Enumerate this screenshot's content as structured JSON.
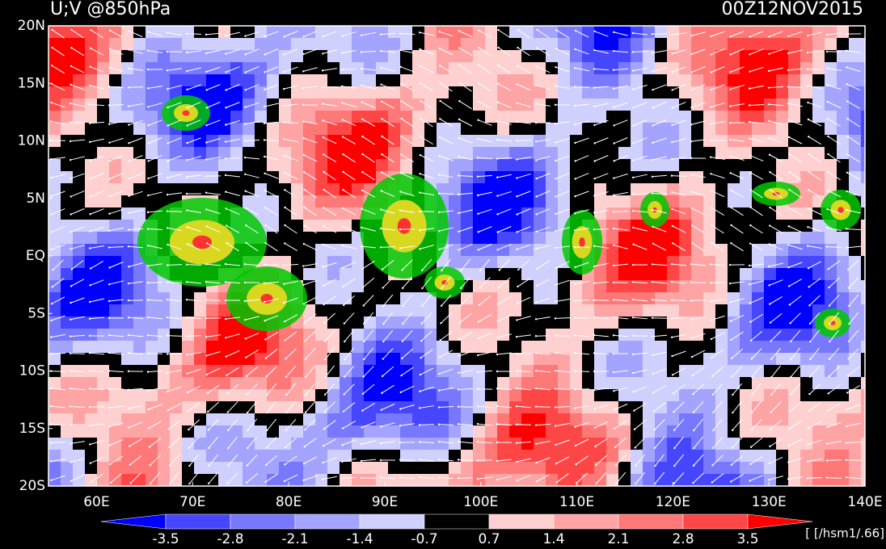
{
  "header": {
    "title": "U;V @850hPa",
    "time": "00Z12NOV2015"
  },
  "map": {
    "lat_labels": [
      "20N",
      "15N",
      "10N",
      "5N",
      "EQ",
      "5S",
      "10S",
      "15S",
      "20S"
    ],
    "lon_labels": [
      "60E",
      "70E",
      "80E",
      "90E",
      "100E",
      "110E",
      "120E",
      "130E",
      "140E"
    ]
  },
  "colorbar": {
    "levels": [
      -3.5,
      -2.8,
      -2.1,
      -1.4,
      -0.7,
      0.7,
      1.4,
      2.1,
      2.8,
      3.5
    ],
    "colors": [
      "#0000ff",
      "#4646ff",
      "#7878ff",
      "#a4a4ff",
      "#d0d0ff",
      "#000000",
      "#ffd0d0",
      "#ffa4a4",
      "#ff7878",
      "#ff4646",
      "#ff0000"
    ],
    "units": "[ [/hsm1/.66]"
  }
}
